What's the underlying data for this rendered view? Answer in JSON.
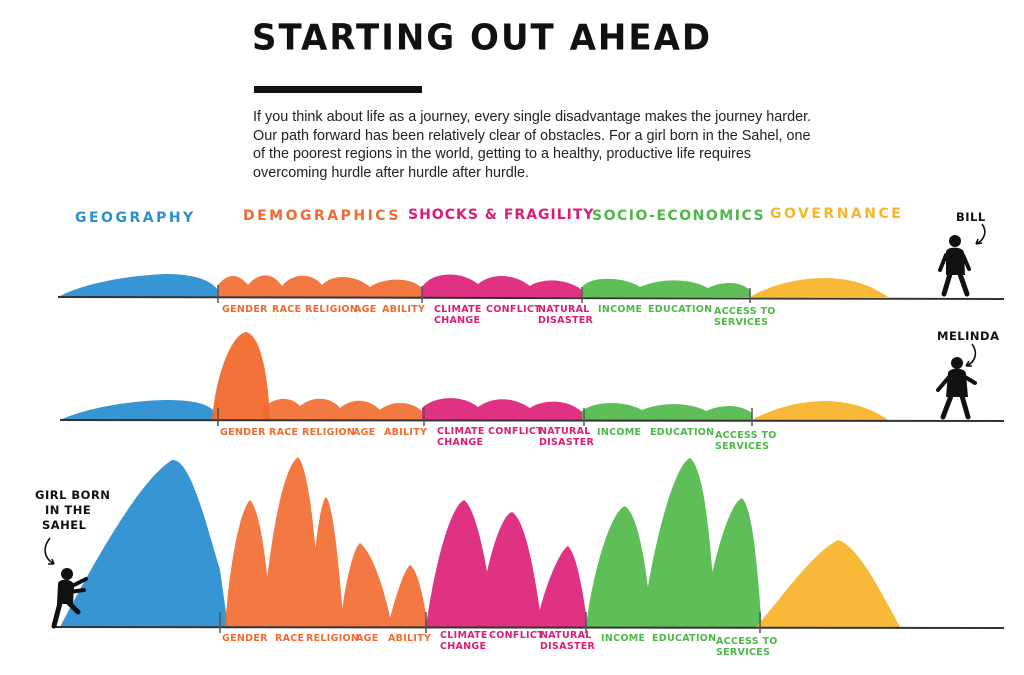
{
  "header": {
    "title": "STARTING OUT AHEAD",
    "intro": "If you think about life as a journey, every single disadvantage makes the journey harder. Our path forward has been relatively clear of obstacles. For a girl born in the Sahel, one of the poorest regions in the world, getting to a healthy, productive life requires overcoming hurdle after hurdle after hurdle."
  },
  "colors": {
    "geography": "#2b8fd0",
    "demographics": "#f26a2e",
    "shocks": "#dd1c75",
    "socio": "#4db847",
    "governance": "#f7b52c",
    "ink": "#222222"
  },
  "categories": [
    {
      "key": "geography",
      "label": "GEOGRAPHY"
    },
    {
      "key": "demographics",
      "label": "DEMOGRAPHICS"
    },
    {
      "key": "shocks",
      "label": "SHOCKS & FRAGILITY"
    },
    {
      "key": "socio",
      "label": "SOCIO-ECONOMICS"
    },
    {
      "key": "governance",
      "label": "GOVERNANCE"
    }
  ],
  "factors": {
    "demographics": [
      "GENDER",
      "RACE",
      "RELIGION",
      "AGE",
      "ABILITY"
    ],
    "shocks": [
      [
        "CLIMATE",
        "CHANGE"
      ],
      [
        "CONFLICT"
      ],
      [
        "NATURAL",
        "DISASTER"
      ]
    ],
    "socio": [
      [
        "INCOME"
      ],
      [
        "EDUCATION"
      ],
      [
        "ACCESS TO",
        "SERVICES"
      ]
    ]
  },
  "people": {
    "bill": "BILL",
    "melinda": "MELINDA",
    "girl": [
      "GIRL BORN",
      "IN THE",
      "SAHEL"
    ]
  }
}
